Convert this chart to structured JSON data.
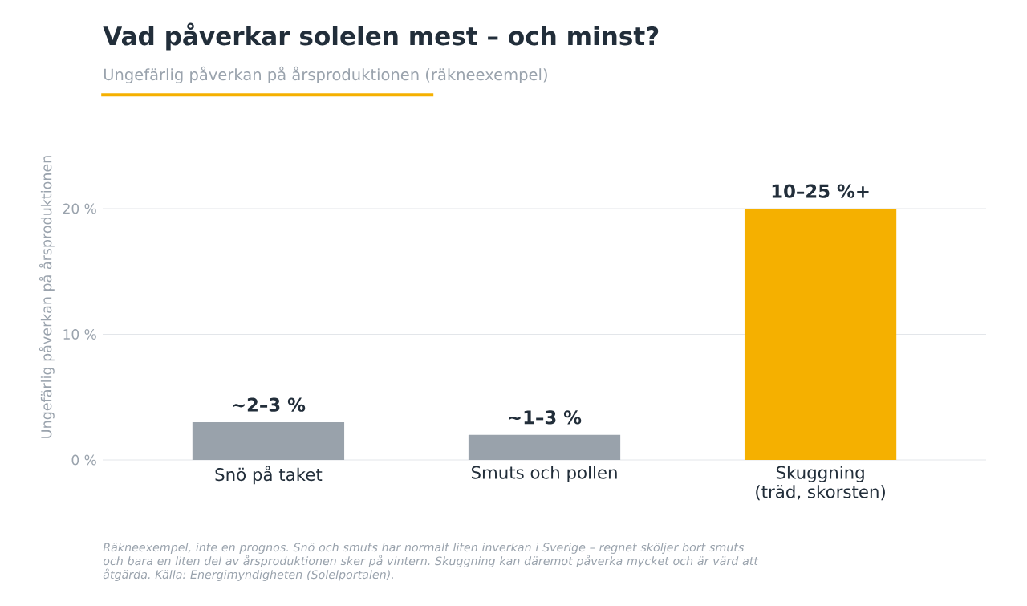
{
  "chart_data": {
    "type": "bar",
    "title": "Vad påverkar solelen mest – och minst?",
    "subtitle": "Ungefärlig påverkan på årsproduktionen (räkneexempel)",
    "ylabel": "Ungefärlig påverkan på årsproduktionen",
    "categories": [
      "Snö på taket",
      "Smuts och pollen",
      "Skuggning (träd, skorsten)"
    ],
    "values": [
      3,
      2,
      20
    ],
    "colors": [
      "#99a2ab",
      "#99a2ab",
      "#f5b000"
    ],
    "ylim": [
      0,
      20
    ],
    "yticks": [
      {
        "value": 0,
        "label": "0 %"
      },
      {
        "value": 10,
        "label": "10 %"
      },
      {
        "value": 20,
        "label": "20 %"
      }
    ],
    "grid": "y",
    "annotations": [
      {
        "text": "~2–3 %",
        "x": "Snö på taket",
        "y": 3
      },
      {
        "text": "~1–3 %",
        "x": "Smuts och pollen",
        "y": 2
      },
      {
        "text": "10–25 %+",
        "x": "Skuggning (träd, skorsten)",
        "y": 20
      },
      "Räkneexempel, inte en prognos. Snö och smuts har normalt liten inverkan i Sverige – regnet sköljer bort smuts och bara en liten del av årsproduktionen sker på vintern. Skuggning kan däremot påverka mycket och är värd att åtgärda. Källa: Energimyndigheten (Solelportalen)."
    ]
  }
}
